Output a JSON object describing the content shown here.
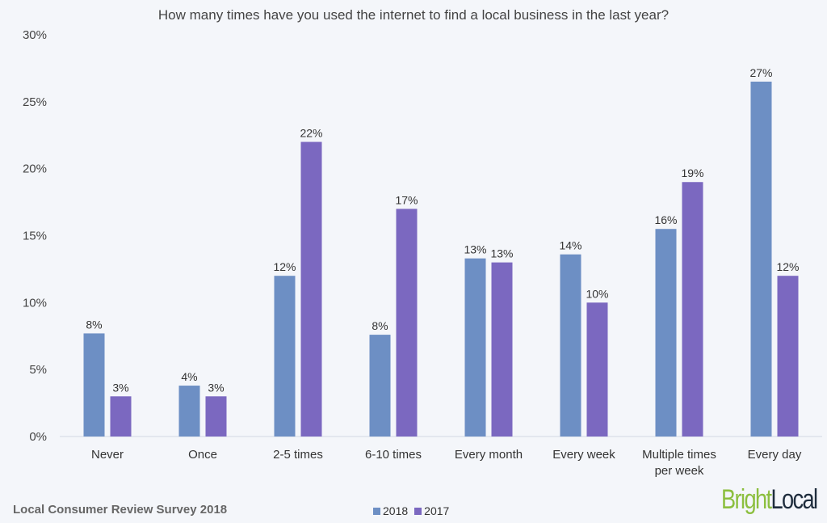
{
  "chart_data": {
    "type": "bar",
    "title": "How many times have you used the internet to find a local business in the last year?",
    "categories": [
      "Never",
      "Once",
      "2-5 times",
      "6-10 times",
      "Every month",
      "Every week",
      "Multiple times per week",
      "Every day"
    ],
    "series": [
      {
        "name": "2018",
        "color": "#6d8fc4",
        "values": [
          7.7,
          3.8,
          12.0,
          7.6,
          13.3,
          13.6,
          15.5,
          26.5
        ],
        "labels": [
          "8%",
          "4%",
          "12%",
          "8%",
          "13%",
          "14%",
          "16%",
          "27%"
        ]
      },
      {
        "name": "2017",
        "color": "#7b68c0",
        "values": [
          3.0,
          3.0,
          22.0,
          17.0,
          13.0,
          10.0,
          19.0,
          12.0
        ],
        "labels": [
          "3%",
          "3%",
          "22%",
          "17%",
          "13%",
          "10%",
          "19%",
          "12%"
        ]
      }
    ],
    "yticks": [
      "0%",
      "5%",
      "10%",
      "15%",
      "20%",
      "25%",
      "30%"
    ],
    "ylim": [
      0,
      30
    ],
    "grid": false,
    "legend_position": "bottom"
  },
  "footer": {
    "source": "Local Consumer Review Survey 2018"
  },
  "logo": {
    "part1": "Bright",
    "part2": "Local"
  }
}
